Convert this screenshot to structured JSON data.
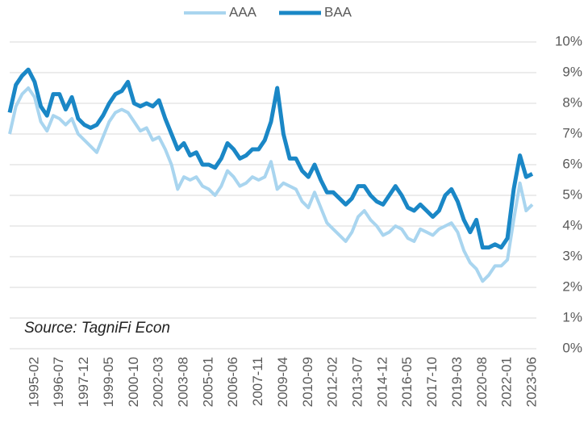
{
  "chart_data": {
    "type": "line",
    "annotations": [
      "Source: TagniFi Econ"
    ],
    "categories": [
      null,
      null,
      null,
      null,
      "1995-02",
      null,
      null,
      null,
      "1996-07",
      null,
      null,
      null,
      "1997-12",
      null,
      null,
      null,
      "1999-05",
      null,
      null,
      null,
      "2000-10",
      null,
      null,
      null,
      "2002-03",
      null,
      null,
      null,
      "2003-08",
      null,
      null,
      null,
      "2005-01",
      null,
      null,
      null,
      "2006-06",
      null,
      null,
      null,
      "2007-11",
      null,
      null,
      null,
      "2009-04",
      null,
      null,
      null,
      "2010-09",
      null,
      null,
      null,
      "2012-02",
      null,
      null,
      null,
      "2013-07",
      null,
      null,
      null,
      "2014-12",
      null,
      null,
      null,
      "2016-05",
      null,
      null,
      null,
      "2017-10",
      null,
      null,
      null,
      "2019-03",
      null,
      null,
      null,
      "2020-08",
      null,
      null,
      null,
      "2022-01",
      null,
      null,
      null,
      "2023-06"
    ],
    "series": [
      {
        "name": "AAA",
        "color": "#a9d5ef",
        "values": [
          7.0,
          7.9,
          8.3,
          8.5,
          8.2,
          7.4,
          7.1,
          7.6,
          7.5,
          7.3,
          7.5,
          7.0,
          6.8,
          6.6,
          6.4,
          6.9,
          7.4,
          7.7,
          7.8,
          7.7,
          7.4,
          7.1,
          7.2,
          6.8,
          6.9,
          6.5,
          6.0,
          5.2,
          5.6,
          5.5,
          5.6,
          5.3,
          5.2,
          5.0,
          5.3,
          5.8,
          5.6,
          5.3,
          5.4,
          5.6,
          5.5,
          5.6,
          6.1,
          5.2,
          5.4,
          5.3,
          5.2,
          4.8,
          4.6,
          5.1,
          4.6,
          4.1,
          3.9,
          3.7,
          3.5,
          3.8,
          4.3,
          4.5,
          4.2,
          4.0,
          3.7,
          3.8,
          4.0,
          3.9,
          3.6,
          3.5,
          3.9,
          3.8,
          3.7,
          3.9,
          4.0,
          4.1,
          3.8,
          3.2,
          2.8,
          2.6,
          2.2,
          2.4,
          2.7,
          2.7,
          2.9,
          4.2,
          5.4,
          4.5,
          4.7
        ]
      },
      {
        "name": "BAA",
        "color": "#1a87c6",
        "values": [
          7.7,
          8.6,
          8.9,
          9.1,
          8.7,
          7.9,
          7.6,
          8.3,
          8.3,
          7.8,
          8.2,
          7.5,
          7.3,
          7.2,
          7.3,
          7.6,
          8.0,
          8.3,
          8.4,
          8.7,
          8.0,
          7.9,
          8.0,
          7.9,
          8.1,
          7.5,
          7.0,
          6.5,
          6.7,
          6.3,
          6.4,
          6.0,
          6.0,
          5.9,
          6.2,
          6.7,
          6.5,
          6.2,
          6.3,
          6.5,
          6.5,
          6.8,
          7.4,
          8.5,
          7.0,
          6.2,
          6.2,
          5.8,
          5.6,
          6.0,
          5.5,
          5.1,
          5.1,
          4.9,
          4.7,
          4.9,
          5.3,
          5.3,
          5.0,
          4.8,
          4.7,
          5.0,
          5.3,
          5.0,
          4.6,
          4.5,
          4.7,
          4.5,
          4.3,
          4.5,
          5.0,
          5.2,
          4.8,
          4.2,
          3.8,
          4.2,
          3.3,
          3.3,
          3.4,
          3.3,
          3.6,
          5.2,
          6.3,
          5.6,
          5.7
        ]
      }
    ],
    "ylim": [
      0,
      10
    ],
    "yticks": [
      {
        "value": 0,
        "label": "0%"
      },
      {
        "value": 1,
        "label": "1%"
      },
      {
        "value": 2,
        "label": "2%"
      },
      {
        "value": 3,
        "label": "3%"
      },
      {
        "value": 4,
        "label": "4%"
      },
      {
        "value": 5,
        "label": "5%"
      },
      {
        "value": 6,
        "label": "6%"
      },
      {
        "value": 7,
        "label": "7%"
      },
      {
        "value": 8,
        "label": "8%"
      },
      {
        "value": 9,
        "label": "9%"
      },
      {
        "value": 10,
        "label": "10%"
      }
    ],
    "grid": true,
    "legend": "top"
  }
}
